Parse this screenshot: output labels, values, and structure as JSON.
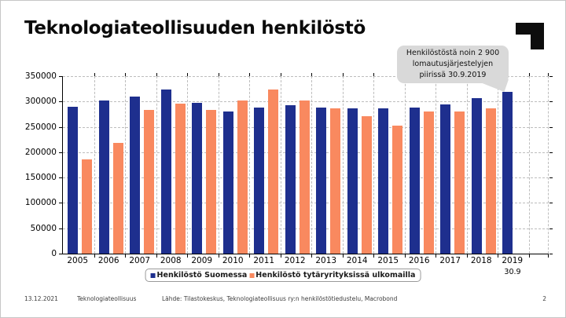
{
  "slide": {
    "title": "Teknologiateollisuuden henkilöstö",
    "footer": {
      "date": "13.12.2021",
      "brand": "Teknologiateollisuus",
      "source": "Lähde: Tilastokeskus, Teknologiateollisuus ry:n henkilöstötiedustelu, Macrobond",
      "page_number": "2"
    },
    "logo_color": "#0d0d0d"
  },
  "callout": {
    "text": "Henkilöstöstä noin 2 900\nlomautusjärjestelyjen\npiirissä  30.9.2019",
    "bg_color": "#d9d9d9"
  },
  "chart_data": {
    "type": "bar",
    "title": "",
    "xlabel": "",
    "ylabel": "",
    "categories": [
      "2005",
      "2006",
      "2007",
      "2008",
      "2009",
      "2010",
      "2011",
      "2012",
      "2013",
      "2014",
      "2015",
      "2016",
      "2017",
      "2018",
      "2019"
    ],
    "series": [
      {
        "name": "Henkilöstö Suomessa",
        "color": "#1e2f8e",
        "values": [
          289000,
          302000,
          310000,
          324000,
          297000,
          281000,
          288000,
          293000,
          288000,
          287000,
          286000,
          288000,
          294000,
          306000,
          319000
        ]
      },
      {
        "name": "Henkilöstö tytäryrityksissä ulkomailla",
        "color": "#f9895f",
        "values": [
          186000,
          218000,
          283000,
          296000,
          283000,
          302000,
          324000,
          302000,
          286000,
          271000,
          253000,
          281000,
          280000,
          286000,
          null
        ]
      }
    ],
    "ylim": [
      0,
      350000
    ],
    "ytick_step": 50000,
    "yticks": [
      0,
      50000,
      100000,
      150000,
      200000,
      250000,
      300000,
      350000
    ],
    "grid": "dashed",
    "legend_position": "bottom",
    "partial_period_label": "30.9",
    "partial_period_category": "2019"
  }
}
